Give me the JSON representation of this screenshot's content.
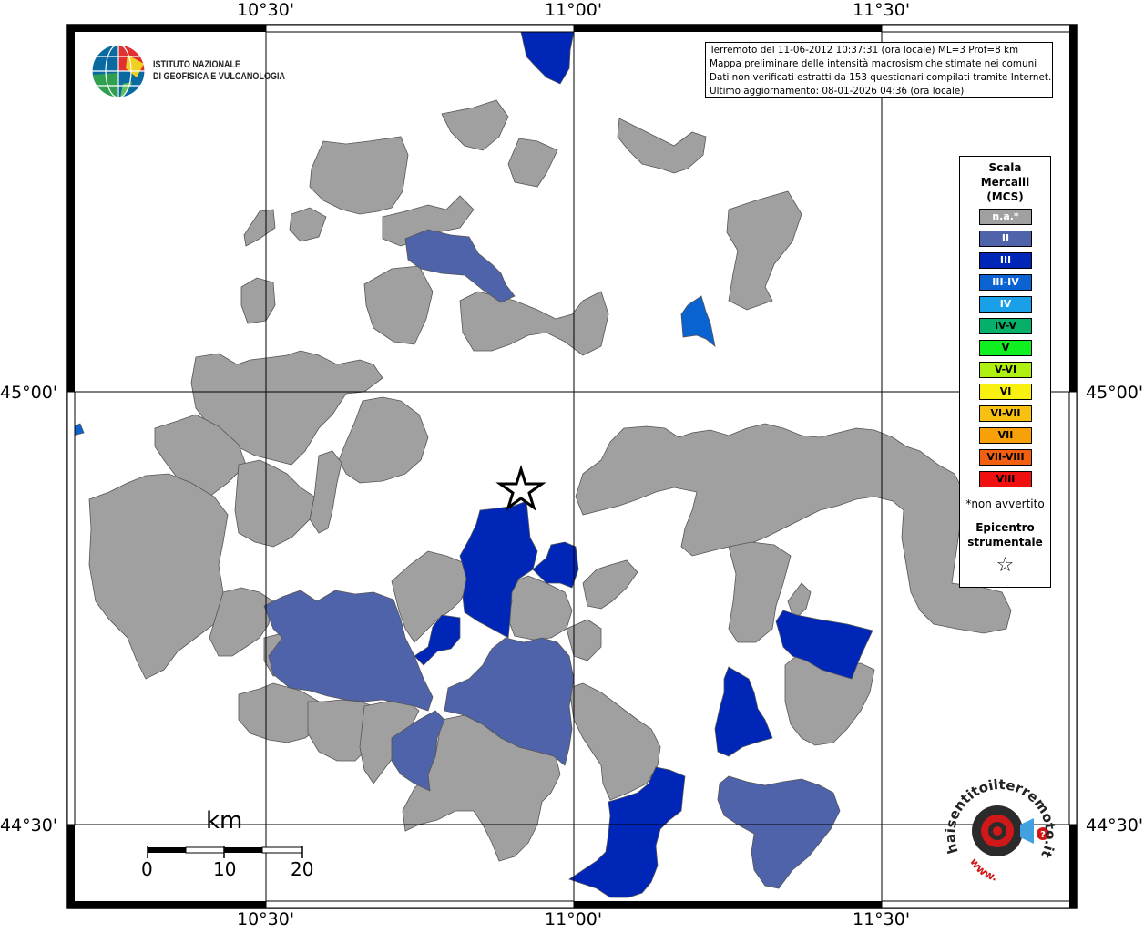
{
  "axes": {
    "top_labels": [
      "10°30'",
      "11°00'",
      "11°30'"
    ],
    "bottom_labels": [
      "10°30'",
      "11°00'",
      "11°30'"
    ],
    "left_labels": [
      "45°00'",
      "44°30'"
    ],
    "right_labels": [
      "45°00'",
      "44°30'"
    ]
  },
  "info": {
    "line1": "Terremoto del 11-06-2012 10:37:31 (ora locale) ML=3 Prof=8 km",
    "line2": "Mappa preliminare delle intensità macrosismiche stimate nei comuni",
    "line3": "Dati non verificati estratti da 153 questionari compilati tramite Internet.",
    "line4": "Ultimo aggiornamento: 08-01-2026 04:36 (ora locale)"
  },
  "logo": {
    "line1": "ISTITUTO NAZIONALE",
    "line2": "DI GEOFISICA E VULCANOLOGIA"
  },
  "legend": {
    "title_line1": "Scala",
    "title_line2": "Mercalli",
    "title_line3": "(MCS)",
    "items": [
      {
        "label": "n.a.*",
        "color": "#a0a0a0",
        "text_color": "#ffffff"
      },
      {
        "label": "II",
        "color": "#4f63aa",
        "text_color": "#ffffff"
      },
      {
        "label": "III",
        "color": "#0026b8",
        "text_color": "#ffffff"
      },
      {
        "label": "III-IV",
        "color": "#0a63d0",
        "text_color": "#ffffff"
      },
      {
        "label": "IV",
        "color": "#1aa0e8",
        "text_color": "#ffffff"
      },
      {
        "label": "IV-V",
        "color": "#06b06a",
        "text_color": "#000000"
      },
      {
        "label": "V",
        "color": "#10f020",
        "text_color": "#000000"
      },
      {
        "label": "V-VI",
        "color": "#b0f010",
        "text_color": "#000000"
      },
      {
        "label": "VI",
        "color": "#f8f010",
        "text_color": "#000000"
      },
      {
        "label": "VI-VII",
        "color": "#f8c010",
        "text_color": "#000000"
      },
      {
        "label": "VII",
        "color": "#f8a008",
        "text_color": "#000000"
      },
      {
        "label": "VII-VIII",
        "color": "#f06010",
        "text_color": "#000000"
      },
      {
        "label": "VIII",
        "color": "#f01010",
        "text_color": "#000000"
      }
    ],
    "note": "*non avvertito",
    "epicenter_line1": "Epicentro",
    "epicenter_line2": "strumentale",
    "epicenter_symbol": "☆"
  },
  "scalebar": {
    "unit": "km",
    "labels": [
      "0",
      "10",
      "20"
    ]
  },
  "colors": {
    "na": "#a0a0a0",
    "II": "#4f63aa",
    "III": "#0026b8",
    "IIIIV": "#0a63d0",
    "IV": "#1aa0e8",
    "border": "#555555"
  },
  "badge": {
    "text": "haisentitoilterremoto.it",
    "sub": "www."
  }
}
